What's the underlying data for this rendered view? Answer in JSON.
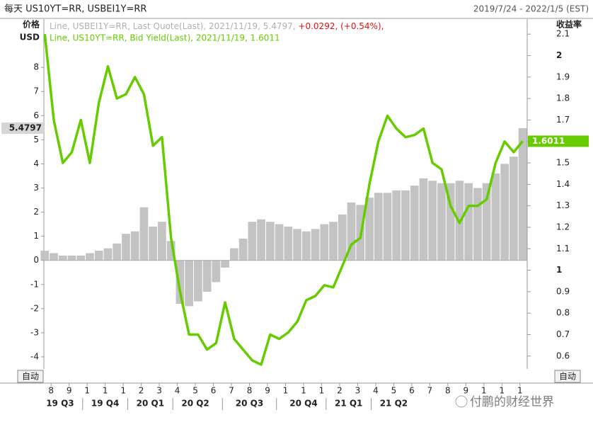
{
  "chart_data": {
    "type": "combo",
    "title": "每天 US10YT=RR, USBEI1Y=RR",
    "date_range": "2019/7/24 - 2022/1/5 (EST)",
    "y_label": [
      "价格",
      "USD"
    ],
    "y2_label": "收益率",
    "legend_change": "+0.0292, (+0.54%),",
    "buttons": [
      "自动",
      "自动"
    ],
    "watermark": "付鹏的财经世界",
    "xlim": [
      -0.4,
      26.4
    ],
    "xticks": [
      {
        "value": 0,
        "label": "8"
      },
      {
        "value": 1,
        "label": "9"
      },
      {
        "value": 2,
        "label": "1"
      },
      {
        "value": 3,
        "label": "1"
      },
      {
        "value": 4,
        "label": "1"
      },
      {
        "value": 5,
        "label": "2"
      },
      {
        "value": 6,
        "label": "3"
      },
      {
        "value": 7,
        "label": "4"
      },
      {
        "value": 8,
        "label": "5"
      },
      {
        "value": 9,
        "label": "6"
      },
      {
        "value": 10,
        "label": "7"
      },
      {
        "value": 11,
        "label": "8"
      },
      {
        "value": 12,
        "label": "9"
      },
      {
        "value": 13,
        "label": "1"
      },
      {
        "value": 14,
        "label": "1"
      },
      {
        "value": 15,
        "label": "1"
      },
      {
        "value": 16,
        "label": "2"
      },
      {
        "value": 17,
        "label": "3"
      },
      {
        "value": 18,
        "label": "4"
      },
      {
        "value": 19,
        "label": "5"
      },
      {
        "value": 20,
        "label": "6"
      },
      {
        "value": 21,
        "label": "7"
      },
      {
        "value": 22,
        "label": "8"
      },
      {
        "value": 23,
        "label": "9"
      },
      {
        "value": 24,
        "label": "1"
      },
      {
        "value": 25,
        "label": "1"
      },
      {
        "value": 26,
        "label": "1"
      }
    ],
    "xquarters": [
      {
        "value": 0.5,
        "label": "19 Q3"
      },
      {
        "value": 3,
        "label": "19 Q4"
      },
      {
        "value": 5.5,
        "label": "20 Q1"
      },
      {
        "value": 8,
        "label": "20 Q2"
      },
      {
        "value": 11,
        "label": "20 Q3"
      },
      {
        "value": 14,
        "label": "20 Q4"
      },
      {
        "value": 16.5,
        "label": "21 Q1"
      },
      {
        "value": 19,
        "label": "21 Q2"
      }
    ],
    "ylim": [
      -4.5,
      10
    ],
    "yticks": [
      -4,
      -3,
      -2,
      -1,
      0,
      1,
      2,
      3,
      4,
      5,
      6,
      7,
      8
    ],
    "y2lim": [
      0.54,
      2.17
    ],
    "y2ticks": [
      0.6,
      0.7,
      0.8,
      0.9,
      1,
      1.1,
      1.2,
      1.3,
      1.4,
      1.5,
      1.6,
      1.7,
      1.8,
      1.9,
      2,
      2.1
    ],
    "x": [
      -0.35,
      0.15,
      0.65,
      1.15,
      1.65,
      2.15,
      2.65,
      3.15,
      3.65,
      4.15,
      4.65,
      5.15,
      5.65,
      6.15,
      6.65,
      7.15,
      7.65,
      8.15,
      8.65,
      9.15,
      9.65,
      10.15,
      10.65,
      11.15,
      11.65,
      12.15,
      12.65,
      13.15,
      13.65,
      14.15,
      14.65,
      15.15,
      15.65,
      16.15,
      16.65,
      17.15,
      17.65,
      18.15,
      18.65,
      19.15,
      19.65,
      20.15,
      20.65,
      21.15,
      21.65,
      22.15,
      22.65,
      23.15,
      23.65,
      24.15,
      24.65,
      25.15,
      25.65,
      26.15
    ],
    "series": [
      {
        "name": "Line, USBEI1Y=RR, Last Quote(Last), 2021/11/19, 5.4797,",
        "type": "bar",
        "color": "#c3c3c3",
        "values": [
          0.4,
          0.3,
          0.2,
          0.2,
          0.2,
          0.3,
          0.4,
          0.5,
          0.7,
          1.1,
          1.2,
          2.2,
          1.4,
          1.6,
          0.8,
          -1.8,
          -1.9,
          -1.7,
          -1.3,
          -0.9,
          -0.3,
          0.5,
          0.9,
          1.6,
          1.7,
          1.6,
          1.5,
          1.4,
          1.3,
          1.2,
          1.3,
          1.5,
          1.6,
          1.9,
          2.4,
          2.3,
          2.6,
          2.8,
          2.8,
          2.9,
          2.9,
          3.1,
          3.4,
          3.3,
          3.2,
          3.2,
          3.3,
          3.2,
          3.0,
          3.2,
          3.6,
          4.0,
          4.3,
          5.4797
        ]
      },
      {
        "name": "Line, US10YT=RR, Bid Yield(Last), 2021/11/19, 1.6011",
        "type": "line",
        "axis": "y2",
        "color": "#66cc00",
        "values": [
          2.1,
          1.7,
          1.5,
          1.55,
          1.7,
          1.5,
          1.78,
          1.95,
          1.8,
          1.82,
          1.9,
          1.82,
          1.58,
          1.62,
          1.15,
          0.9,
          0.7,
          0.7,
          0.63,
          0.66,
          0.85,
          0.68,
          0.63,
          0.58,
          0.56,
          0.7,
          0.68,
          0.71,
          0.76,
          0.86,
          0.88,
          0.93,
          0.92,
          1.02,
          1.12,
          1.15,
          1.4,
          1.6,
          1.72,
          1.66,
          1.62,
          1.63,
          1.66,
          1.5,
          1.47,
          1.3,
          1.22,
          1.3,
          1.3,
          1.33,
          1.5,
          1.6,
          1.55,
          1.6011
        ]
      }
    ]
  }
}
